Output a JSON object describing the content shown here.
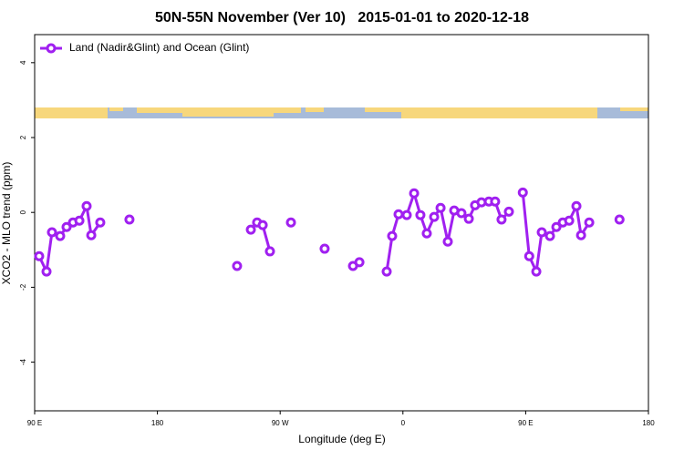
{
  "chart_data": {
    "type": "line",
    "title": "50N-55N November (Ver 10)   2015-01-01 to 2020-12-18",
    "xlabel": "Longitude (deg E)",
    "ylabel": "XCO2 - MLO trend (ppm)",
    "xlim": [
      90,
      540
    ],
    "ylim": [
      -5.3,
      4.75
    ],
    "xticks": [
      {
        "value": 90,
        "label": "90 E"
      },
      180,
      {
        "value": 270,
        "label": "90 W"
      },
      {
        "value": 360,
        "label": "0"
      },
      {
        "value": 450,
        "label": "90 E"
      },
      {
        "value": 540,
        "label": "180"
      }
    ],
    "yticks": [
      -4,
      -2,
      0,
      2,
      4
    ],
    "legend": "top-left",
    "series": [
      {
        "name": "Land (Nadir&Glint) and Ocean (Glint)",
        "color": "#a020f0",
        "x": [
          93.3,
          98.7,
          102.7,
          108.7,
          113.4,
          118.1,
          122.8,
          128.1,
          131.5,
          138.1,
          null,
          159.5,
          null,
          238.4,
          null,
          248.5,
          253.1,
          257.2,
          262.5,
          null,
          277.9,
          null,
          302.6,
          null,
          323.4,
          328.1,
          null,
          348.1,
          352.1,
          356.8,
          362.8,
          368.2,
          372.8,
          377.5,
          382.9,
          387.6,
          392.9,
          397.6,
          402.9,
          408.3,
          412.9,
          417.6,
          423.0,
          427.6,
          432.3,
          437.7,
          null,
          447.9,
          452.6,
          457.8,
          461.8,
          467.8,
          472.5,
          477.2,
          481.9,
          487.2,
          490.6,
          496.6,
          null,
          518.8
        ],
        "values": [
          -1.17,
          -1.58,
          -0.53,
          -0.63,
          -0.39,
          -0.27,
          -0.22,
          0.17,
          -0.61,
          -0.27,
          null,
          -0.19,
          null,
          -1.43,
          null,
          -0.46,
          -0.27,
          -0.34,
          -1.04,
          null,
          -0.27,
          null,
          -0.97,
          null,
          -1.43,
          -1.33,
          null,
          -1.58,
          -0.63,
          -0.05,
          -0.07,
          0.51,
          -0.07,
          -0.56,
          -0.12,
          0.12,
          -0.78,
          0.05,
          -0.02,
          -0.17,
          0.19,
          0.27,
          0.29,
          0.29,
          -0.19,
          0.02,
          null,
          0.53,
          -1.17,
          -1.58,
          -0.53,
          -0.63,
          -0.39,
          -0.27,
          -0.22,
          0.17,
          -0.61,
          -0.27,
          null,
          -0.19
        ]
      }
    ]
  }
}
